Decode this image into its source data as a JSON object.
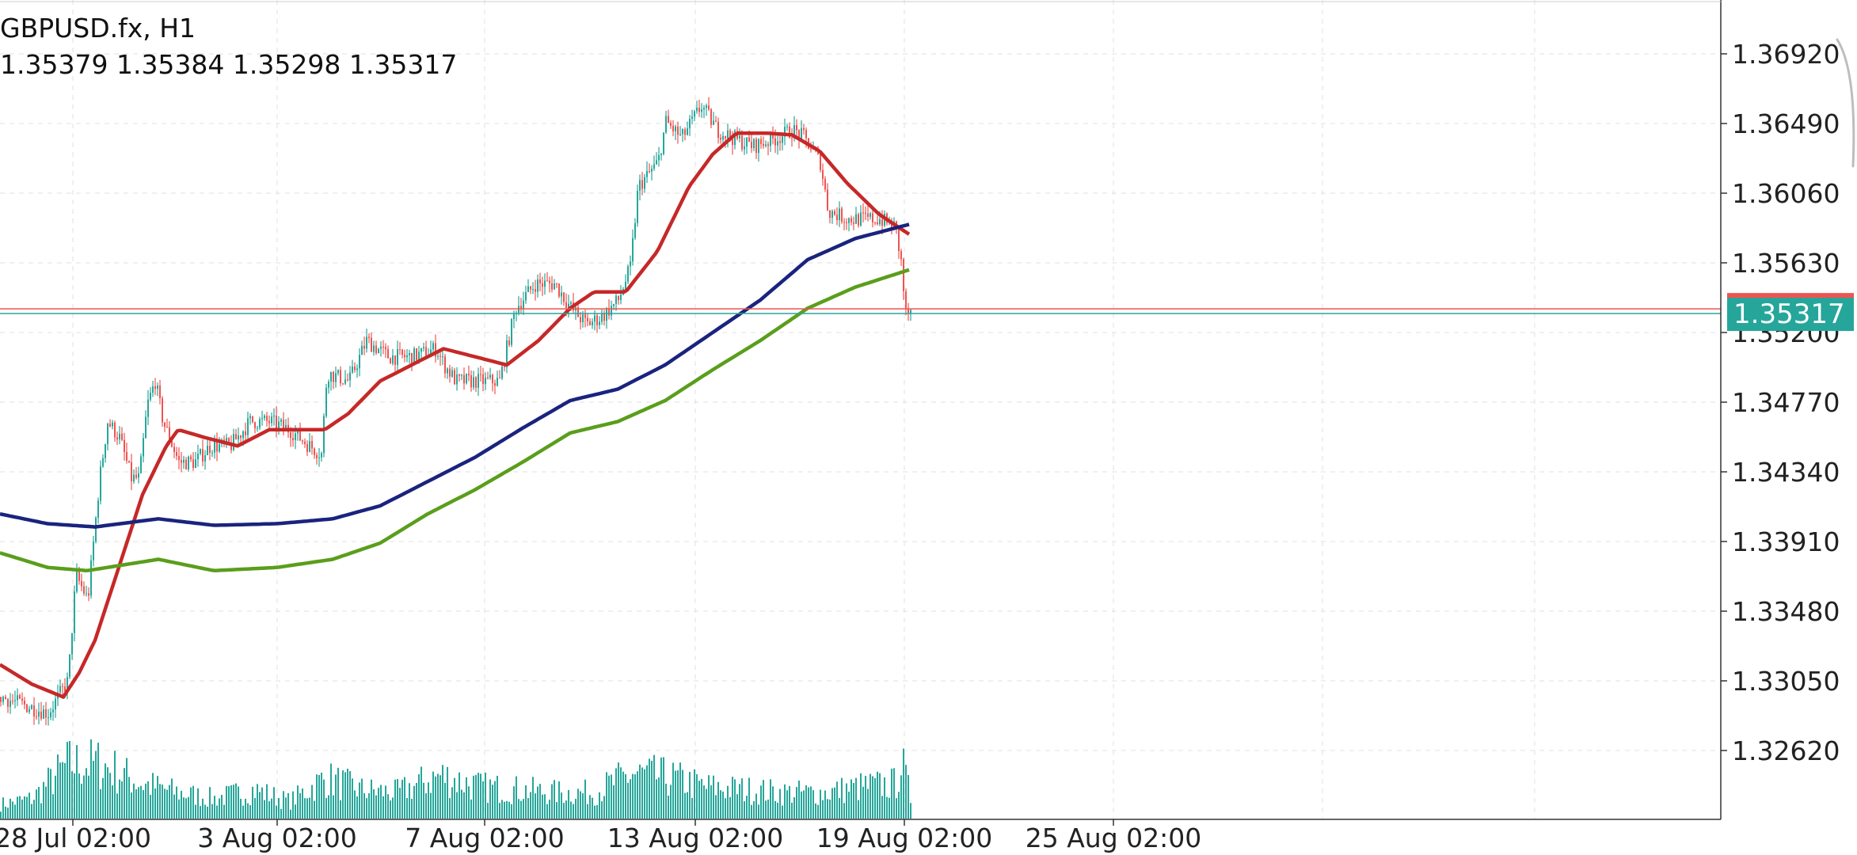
{
  "header": {
    "title": "GBPUSD.fx, H1",
    "ohlc": "1.35379 1.35384 1.35298 1.35317"
  },
  "colors": {
    "bull": "#26a69a",
    "bear": "#ef5350",
    "ma_fast": "#c62828",
    "ma_mid": "#1a237e",
    "ma_slow": "#5a9e1c",
    "volume": "#26a69a",
    "ask_line": "#ef5350",
    "bid_line": "#26a69a",
    "grid": "#e0e0e0"
  },
  "chart_data": {
    "type": "line",
    "symbol": "GBPUSD.fx",
    "timeframe": "H1",
    "y_ticks": [
      "1.36920",
      "1.36490",
      "1.36060",
      "1.35630",
      "1.35200",
      "1.34770",
      "1.34340",
      "1.33910",
      "1.33480",
      "1.33050",
      "1.32620"
    ],
    "ylim": [
      1.3262,
      1.3692
    ],
    "x_ticks": [
      "28 Jul 02:00",
      "3 Aug 02:00",
      "7 Aug 02:00",
      "13 Aug 02:00",
      "19 Aug 02:00",
      "25 Aug 02:00"
    ],
    "grid": true,
    "current_bid": "1.35317",
    "current_ask": 1.35346,
    "price_path": [
      [
        0,
        1.3295
      ],
      [
        60,
        1.3285
      ],
      [
        85,
        1.3305
      ],
      [
        95,
        1.337
      ],
      [
        110,
        1.3355
      ],
      [
        125,
        1.343
      ],
      [
        135,
        1.3465
      ],
      [
        150,
        1.3455
      ],
      [
        165,
        1.343
      ],
      [
        175,
        1.343
      ],
      [
        185,
        1.3475
      ],
      [
        195,
        1.349
      ],
      [
        205,
        1.3465
      ],
      [
        225,
        1.344
      ],
      [
        245,
        1.344
      ],
      [
        265,
        1.345
      ],
      [
        290,
        1.345
      ],
      [
        315,
        1.3465
      ],
      [
        340,
        1.3465
      ],
      [
        365,
        1.346
      ],
      [
        390,
        1.345
      ],
      [
        405,
        1.3445
      ],
      [
        412,
        1.3495
      ],
      [
        440,
        1.349
      ],
      [
        462,
        1.3515
      ],
      [
        490,
        1.3505
      ],
      [
        520,
        1.3505
      ],
      [
        550,
        1.351
      ],
      [
        560,
        1.35
      ],
      [
        575,
        1.349
      ],
      [
        600,
        1.349
      ],
      [
        630,
        1.349
      ],
      [
        650,
        1.3535
      ],
      [
        675,
        1.355
      ],
      [
        700,
        1.355
      ],
      [
        720,
        1.3535
      ],
      [
        740,
        1.3525
      ],
      [
        760,
        1.353
      ],
      [
        780,
        1.354
      ],
      [
        795,
        1.356
      ],
      [
        805,
        1.361
      ],
      [
        830,
        1.3625
      ],
      [
        840,
        1.365
      ],
      [
        860,
        1.364
      ],
      [
        885,
        1.366
      ],
      [
        905,
        1.3645
      ],
      [
        925,
        1.364
      ],
      [
        950,
        1.3635
      ],
      [
        980,
        1.364
      ],
      [
        1000,
        1.3645
      ],
      [
        1015,
        1.364
      ],
      [
        1035,
        1.3625
      ],
      [
        1045,
        1.3595
      ],
      [
        1070,
        1.359
      ],
      [
        1090,
        1.359
      ],
      [
        1110,
        1.359
      ],
      [
        1130,
        1.3585
      ],
      [
        1138,
        1.356
      ],
      [
        1142,
        1.3532
      ],
      [
        1150,
        1.3531
      ]
    ],
    "series": [
      {
        "name": "",
        "color_key": "ma_fast",
        "points": [
          [
            0,
            1.3315
          ],
          [
            40,
            1.3303
          ],
          [
            80,
            1.3295
          ],
          [
            100,
            1.331
          ],
          [
            120,
            1.333
          ],
          [
            150,
            1.3375
          ],
          [
            180,
            1.342
          ],
          [
            210,
            1.345
          ],
          [
            225,
            1.346
          ],
          [
            260,
            1.3455
          ],
          [
            300,
            1.345
          ],
          [
            340,
            1.346
          ],
          [
            380,
            1.346
          ],
          [
            410,
            1.346
          ],
          [
            440,
            1.347
          ],
          [
            480,
            1.349
          ],
          [
            520,
            1.35
          ],
          [
            560,
            1.351
          ],
          [
            600,
            1.3505
          ],
          [
            640,
            1.35
          ],
          [
            680,
            1.3515
          ],
          [
            720,
            1.3535
          ],
          [
            750,
            1.3545
          ],
          [
            790,
            1.3545
          ],
          [
            830,
            1.357
          ],
          [
            870,
            1.361
          ],
          [
            900,
            1.363
          ],
          [
            930,
            1.3643
          ],
          [
            970,
            1.3643
          ],
          [
            1000,
            1.3642
          ],
          [
            1035,
            1.3632
          ],
          [
            1070,
            1.3612
          ],
          [
            1110,
            1.3593
          ],
          [
            1150,
            1.358
          ]
        ]
      },
      {
        "name": "",
        "color_key": "ma_mid",
        "points": [
          [
            0,
            1.3408
          ],
          [
            60,
            1.3402
          ],
          [
            120,
            1.34
          ],
          [
            200,
            1.3405
          ],
          [
            270,
            1.3401
          ],
          [
            350,
            1.3402
          ],
          [
            420,
            1.3405
          ],
          [
            480,
            1.3413
          ],
          [
            540,
            1.3428
          ],
          [
            600,
            1.3443
          ],
          [
            660,
            1.3461
          ],
          [
            720,
            1.3478
          ],
          [
            780,
            1.3485
          ],
          [
            840,
            1.35
          ],
          [
            900,
            1.352
          ],
          [
            960,
            1.354
          ],
          [
            1020,
            1.3565
          ],
          [
            1080,
            1.3578
          ],
          [
            1150,
            1.3587
          ]
        ]
      },
      {
        "name": "",
        "color_key": "ma_slow",
        "points": [
          [
            0,
            1.3384
          ],
          [
            60,
            1.3375
          ],
          [
            110,
            1.3373
          ],
          [
            200,
            1.338
          ],
          [
            270,
            1.3373
          ],
          [
            350,
            1.3375
          ],
          [
            420,
            1.338
          ],
          [
            480,
            1.339
          ],
          [
            540,
            1.3408
          ],
          [
            600,
            1.3423
          ],
          [
            660,
            1.344
          ],
          [
            720,
            1.3458
          ],
          [
            780,
            1.3465
          ],
          [
            840,
            1.3478
          ],
          [
            900,
            1.3497
          ],
          [
            960,
            1.3515
          ],
          [
            1020,
            1.3535
          ],
          [
            1080,
            1.3548
          ],
          [
            1150,
            1.3559
          ]
        ]
      }
    ],
    "volume": [
      [
        0,
        0.25
      ],
      [
        40,
        0.35
      ],
      [
        85,
        0.95
      ],
      [
        125,
        0.95
      ],
      [
        180,
        0.6
      ],
      [
        225,
        0.45
      ],
      [
        270,
        0.35
      ],
      [
        320,
        0.5
      ],
      [
        365,
        0.3
      ],
      [
        410,
        0.7
      ],
      [
        455,
        0.5
      ],
      [
        500,
        0.45
      ],
      [
        555,
        0.75
      ],
      [
        605,
        0.55
      ],
      [
        655,
        0.5
      ],
      [
        700,
        0.45
      ],
      [
        748,
        0.45
      ],
      [
        798,
        0.78
      ],
      [
        848,
        0.7
      ],
      [
        890,
        0.55
      ],
      [
        940,
        0.5
      ],
      [
        990,
        0.45
      ],
      [
        1040,
        0.45
      ],
      [
        1085,
        0.55
      ],
      [
        1130,
        0.6
      ],
      [
        1137,
        1.0
      ],
      [
        1150,
        0.3
      ]
    ]
  }
}
